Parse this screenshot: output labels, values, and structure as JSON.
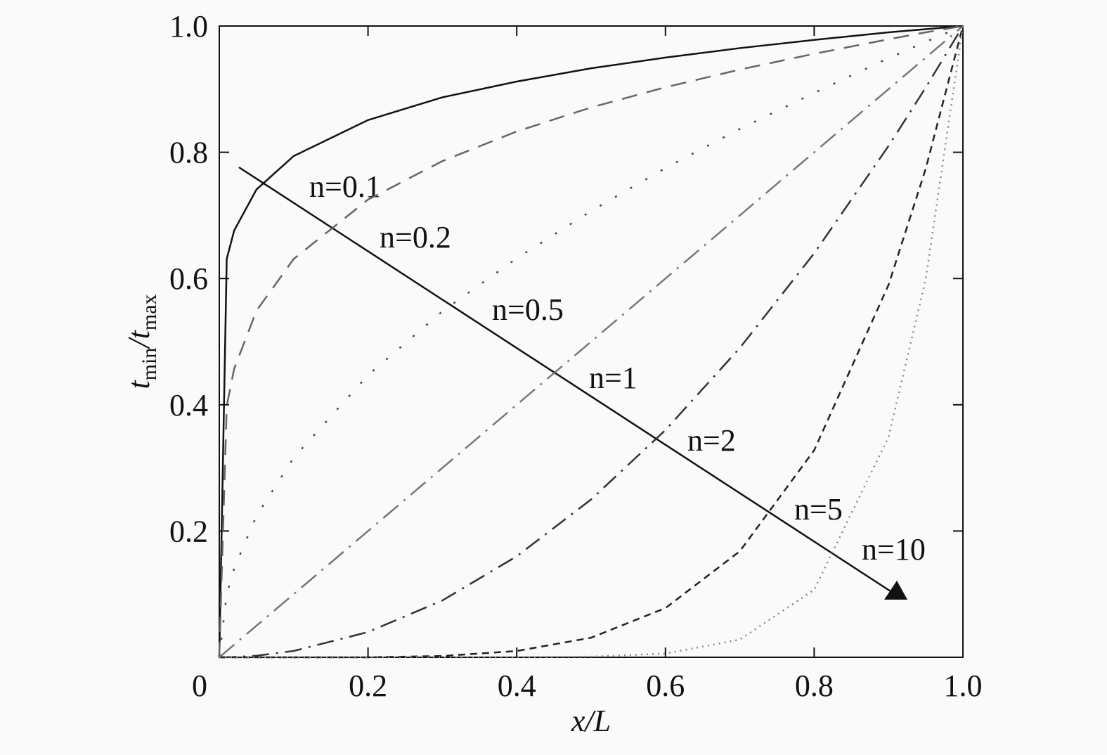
{
  "chart_data": {
    "type": "line",
    "xlabel": "x/L",
    "ylabel": [
      "t",
      "min",
      "/",
      "t",
      "max"
    ],
    "x": [
      0,
      0.01,
      0.02,
      0.05,
      0.1,
      0.2,
      0.3,
      0.4,
      0.5,
      0.6,
      0.7,
      0.8,
      0.9,
      0.95,
      1
    ],
    "series": [
      {
        "name": "n=0.1",
        "color": "#111111",
        "dash": "none",
        "values": [
          0,
          0.631,
          0.676,
          0.741,
          0.794,
          0.851,
          0.887,
          0.912,
          0.933,
          0.95,
          0.965,
          0.978,
          0.99,
          0.995,
          1
        ]
      },
      {
        "name": "n=0.2",
        "color": "#666666",
        "dash": "22 14",
        "values": [
          0,
          0.398,
          0.457,
          0.549,
          0.631,
          0.725,
          0.786,
          0.833,
          0.871,
          0.903,
          0.931,
          0.956,
          0.979,
          0.99,
          1
        ]
      },
      {
        "name": "n=0.5",
        "color": "#444444",
        "dash": "3 22",
        "values": [
          0,
          0.1,
          0.141,
          0.224,
          0.316,
          0.447,
          0.548,
          0.632,
          0.707,
          0.775,
          0.837,
          0.894,
          0.949,
          0.975,
          1
        ]
      },
      {
        "name": "n=1",
        "color": "#777777",
        "dash": "28 10 3 10",
        "values": [
          0,
          0.01,
          0.02,
          0.05,
          0.1,
          0.2,
          0.3,
          0.4,
          0.5,
          0.6,
          0.7,
          0.8,
          0.9,
          0.95,
          1
        ]
      },
      {
        "name": "n=2",
        "color": "#333333",
        "dash": "24 10 3 10",
        "values": [
          0,
          0.0001,
          0.0004,
          0.0025,
          0.01,
          0.04,
          0.09,
          0.16,
          0.25,
          0.36,
          0.49,
          0.64,
          0.81,
          0.9025,
          1
        ]
      },
      {
        "name": "n=5",
        "color": "#222222",
        "dash": "10 7",
        "values": [
          0,
          0,
          0,
          0,
          0,
          0,
          0.002,
          0.01,
          0.031,
          0.078,
          0.168,
          0.328,
          0.59,
          0.774,
          1
        ]
      },
      {
        "name": "n=10",
        "color": "#888888",
        "dash": "2 6",
        "values": [
          0,
          0,
          0,
          0,
          0,
          0,
          0,
          0,
          0.001,
          0.006,
          0.028,
          0.107,
          0.349,
          0.599,
          1
        ]
      }
    ],
    "xlim": [
      0,
      1
    ],
    "ylim": [
      0,
      1
    ],
    "xticks": [
      0,
      0.2,
      0.4,
      0.6,
      0.8,
      {
        "value": 1,
        "label": "1.0"
      }
    ],
    "yticks": [
      0.2,
      0.4,
      0.6,
      0.8,
      {
        "value": 1,
        "label": "1.0"
      }
    ]
  }
}
